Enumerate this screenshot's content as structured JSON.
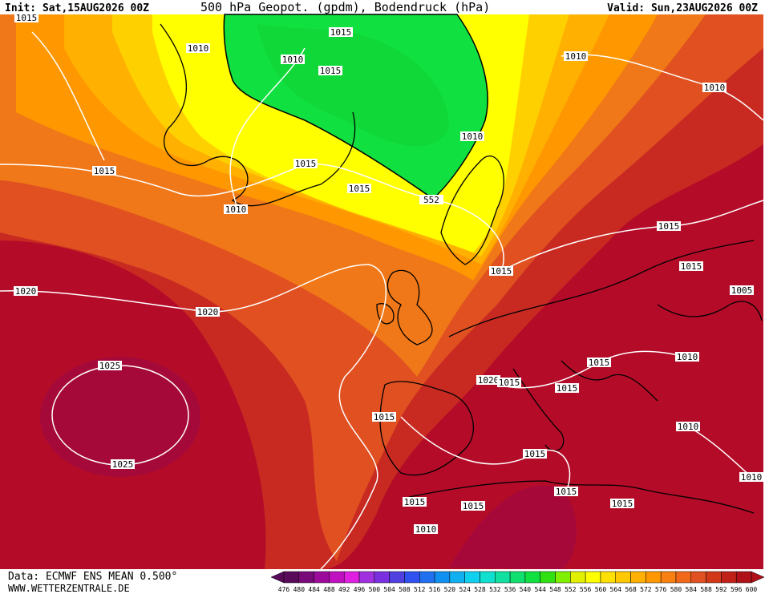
{
  "header": {
    "init": "Init: Sat,15AUG2026 00Z",
    "title": "500 hPa Geopot. (gpdm), Bodendruck (hPa)",
    "valid": "Valid: Sun,23AUG2026 00Z"
  },
  "footer": {
    "source": "Data: ECMWF ENS MEAN 0.500°",
    "site": "WWW.WETTERZENTRALE.DE"
  },
  "isobar_labels": [
    1015,
    1010,
    1015,
    1010,
    1015,
    1010,
    1010,
    1010,
    1015,
    1015,
    1015,
    1010,
    1015,
    1015,
    1015,
    1005,
    1020,
    1020,
    1010,
    1015,
    1020,
    1015,
    1015,
    1025,
    1015,
    1010,
    1015,
    1025,
    1010,
    1015,
    1015,
    1015,
    1015,
    1010
  ],
  "geopotential_label": 552,
  "colorbar": {
    "levels": [
      476,
      480,
      484,
      488,
      492,
      496,
      500,
      504,
      508,
      512,
      516,
      520,
      524,
      528,
      532,
      536,
      540,
      544,
      548,
      552,
      556,
      560,
      564,
      568,
      572,
      576,
      580,
      584,
      588,
      592,
      596,
      600
    ],
    "colors": [
      "#5a0a5a",
      "#7a0a7a",
      "#9c0a9c",
      "#c010c0",
      "#e020e0",
      "#a030e0",
      "#7a30e0",
      "#5040e0",
      "#3050f0",
      "#2070f0",
      "#1090f0",
      "#10b0f0",
      "#10d0f0",
      "#10e0d0",
      "#10e0a0",
      "#10e070",
      "#10e040",
      "#30e010",
      "#80f000",
      "#e0f000",
      "#ffff00",
      "#ffe000",
      "#ffc800",
      "#ffb000",
      "#ff9800",
      "#f88010",
      "#f06818",
      "#e05020",
      "#d03818",
      "#c02018",
      "#b01018"
    ]
  }
}
